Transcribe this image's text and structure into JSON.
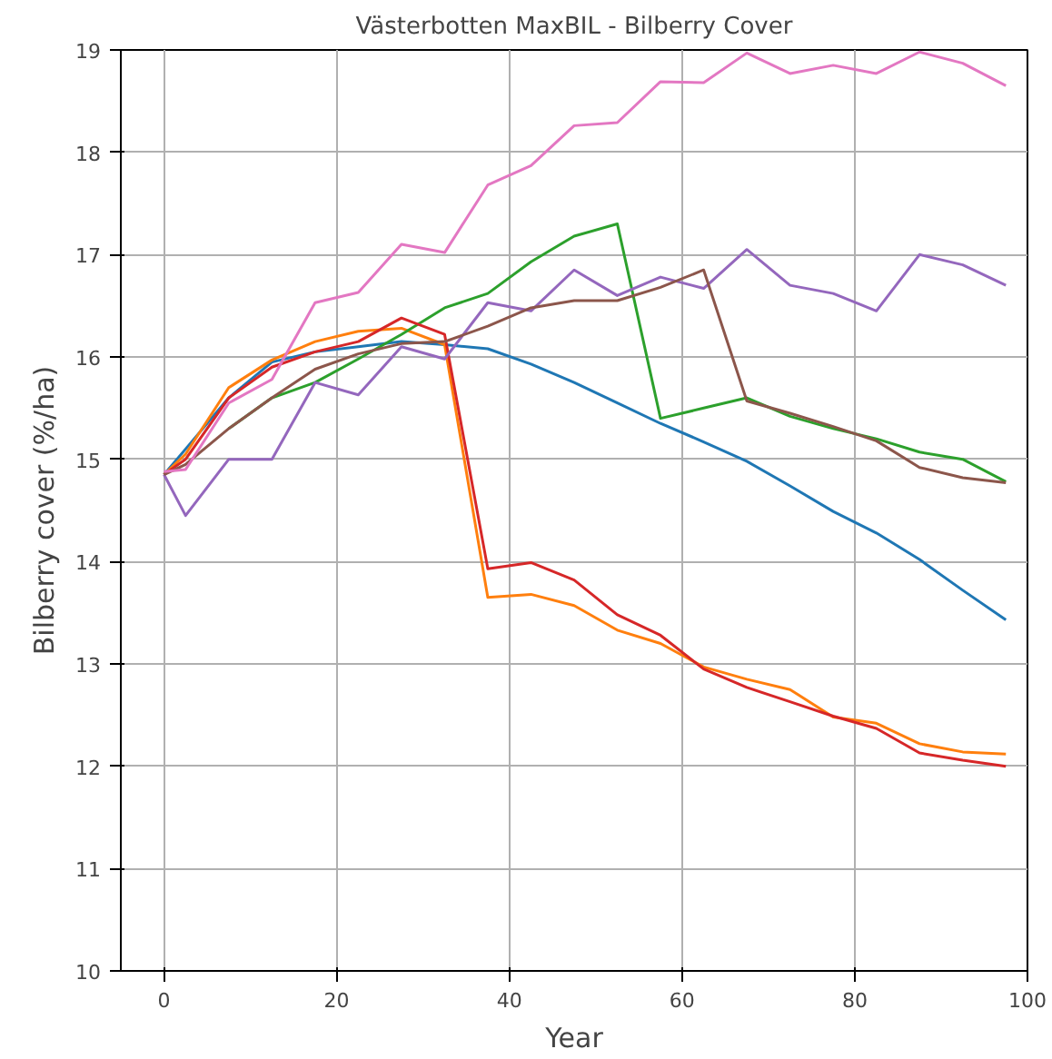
{
  "chart_data": {
    "type": "line",
    "title": "Västerbotten MaxBIL - Bilberry Cover",
    "xlabel": "Year",
    "ylabel": "Bilberry cover (%/ha)",
    "x": [
      0,
      2.5,
      7.5,
      12.5,
      17.5,
      22.5,
      27.5,
      32.5,
      37.5,
      42.5,
      47.5,
      52.5,
      57.5,
      62.5,
      67.5,
      72.5,
      77.5,
      82.5,
      87.5,
      92.5,
      97.5
    ],
    "series": [
      {
        "color": "#1f77b4",
        "values": [
          14.85,
          15.1,
          15.6,
          15.95,
          16.05,
          16.1,
          16.15,
          16.12,
          16.08,
          15.93,
          15.75,
          15.55,
          15.35,
          15.17,
          14.98,
          14.74,
          14.49,
          14.28,
          14.02,
          13.72,
          13.43
        ]
      },
      {
        "color": "#ff7f0e",
        "values": [
          14.85,
          15.05,
          15.7,
          15.97,
          16.15,
          16.25,
          16.28,
          16.12,
          13.65,
          13.68,
          13.57,
          13.33,
          13.2,
          12.97,
          12.85,
          12.75,
          12.48,
          12.42,
          12.22,
          12.14,
          12.12
        ]
      },
      {
        "color": "#2ca02c",
        "values": [
          null,
          null,
          15.3,
          15.6,
          15.75,
          15.98,
          16.22,
          16.48,
          16.62,
          16.93,
          17.18,
          17.3,
          15.4,
          15.5,
          15.6,
          15.42,
          15.3,
          15.2,
          15.07,
          15.0,
          14.78
        ]
      },
      {
        "color": "#d62728",
        "values": [
          14.85,
          15.0,
          15.6,
          15.9,
          16.05,
          16.15,
          16.38,
          16.22,
          13.93,
          13.99,
          13.82,
          13.48,
          13.28,
          12.95,
          12.77,
          12.63,
          12.49,
          12.37,
          12.13,
          12.06,
          12.0
        ]
      },
      {
        "color": "#9467bd",
        "values": [
          14.85,
          14.45,
          15.0,
          15.0,
          15.75,
          15.63,
          16.1,
          15.98,
          16.53,
          16.45,
          16.85,
          16.6,
          16.78,
          16.67,
          17.05,
          16.7,
          16.62,
          16.45,
          17.0,
          16.9,
          16.7
        ]
      },
      {
        "color": "#8c564b",
        "values": [
          14.85,
          14.95,
          15.3,
          15.6,
          15.88,
          16.03,
          16.13,
          16.15,
          16.3,
          16.48,
          16.55,
          16.55,
          16.68,
          16.85,
          15.57,
          15.45,
          15.32,
          15.18,
          14.92,
          14.82,
          14.77
        ]
      },
      {
        "color": "#e377c2",
        "values": [
          14.88,
          14.9,
          15.55,
          15.78,
          16.53,
          16.63,
          17.1,
          17.02,
          17.68,
          17.87,
          18.26,
          18.29,
          18.69,
          18.68,
          18.97,
          18.77,
          18.85,
          18.77,
          18.98,
          18.87,
          18.65
        ]
      }
    ],
    "xlim": [
      -5,
      100
    ],
    "ylim": [
      10,
      19
    ],
    "xticks": [
      0,
      20,
      40,
      60,
      80,
      100
    ],
    "yticks": [
      10,
      11,
      12,
      13,
      14,
      15,
      16,
      17,
      18,
      19
    ],
    "grid": true
  }
}
